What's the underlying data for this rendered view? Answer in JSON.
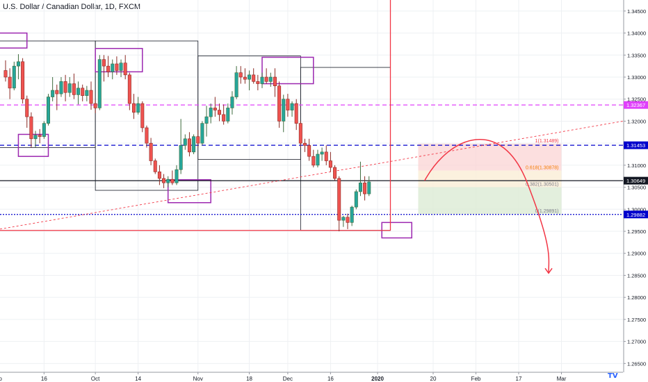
{
  "chart_data": {
    "type": "candlestick",
    "title": "U.S. Dollar / Canadian Dollar, 1D, FXCM",
    "y_ticks": [
      "1.34500",
      "1.34000",
      "1.33500",
      "1.33000",
      "1.32500",
      "1.32000",
      "1.31500",
      "1.31000",
      "1.30500",
      "1.30000",
      "1.29500",
      "1.29000",
      "1.28500",
      "1.28000",
      "1.27500",
      "1.27000",
      "1.26500"
    ],
    "ylim": [
      1.263,
      1.3475
    ],
    "x_ticks": [
      {
        "label": "Sep",
        "i": -2
      },
      {
        "label": "16",
        "i": 9
      },
      {
        "label": "Oct",
        "i": 21
      },
      {
        "label": "14",
        "i": 31
      },
      {
        "label": "Nov",
        "i": 45
      },
      {
        "label": "18",
        "i": 57
      },
      {
        "label": "Dec",
        "i": 66
      },
      {
        "label": "16",
        "i": 76
      },
      {
        "label": "2020",
        "i": 87
      },
      {
        "label": "20",
        "i": 100
      },
      {
        "label": "Feb",
        "i": 110
      },
      {
        "label": "17",
        "i": 120
      },
      {
        "label": "Mar",
        "i": 130
      }
    ],
    "candles": [
      [
        1.3315,
        1.3338,
        1.329,
        1.33
      ],
      [
        1.33,
        1.332,
        1.325,
        1.3275
      ],
      [
        1.3275,
        1.3335,
        1.327,
        1.3325
      ],
      [
        1.3325,
        1.3352,
        1.3295,
        1.3335
      ],
      [
        1.3335,
        1.3343,
        1.324,
        1.325
      ],
      [
        1.325,
        1.3258,
        1.3185,
        1.321
      ],
      [
        1.321,
        1.322,
        1.314,
        1.316
      ],
      [
        1.316,
        1.3178,
        1.314,
        1.3168
      ],
      [
        1.3168,
        1.3182,
        1.315,
        1.3165
      ],
      [
        1.3165,
        1.32,
        1.316,
        1.3195
      ],
      [
        1.3195,
        1.3262,
        1.319,
        1.3255
      ],
      [
        1.3255,
        1.33,
        1.3245,
        1.327
      ],
      [
        1.327,
        1.3283,
        1.3225,
        1.3262
      ],
      [
        1.3262,
        1.33,
        1.3255,
        1.329
      ],
      [
        1.329,
        1.3305,
        1.3245,
        1.3265
      ],
      [
        1.3265,
        1.33,
        1.3255,
        1.3285
      ],
      [
        1.3285,
        1.3308,
        1.325,
        1.326
      ],
      [
        1.326,
        1.329,
        1.3238,
        1.3275
      ],
      [
        1.3275,
        1.3283,
        1.3245,
        1.3258
      ],
      [
        1.3258,
        1.328,
        1.3245,
        1.327
      ],
      [
        1.327,
        1.329,
        1.3226,
        1.324
      ],
      [
        1.324,
        1.3248,
        1.3218,
        1.323
      ],
      [
        1.323,
        1.335,
        1.3225,
        1.334
      ],
      [
        1.334,
        1.335,
        1.329,
        1.3325
      ],
      [
        1.3325,
        1.3348,
        1.33,
        1.3312
      ],
      [
        1.3312,
        1.334,
        1.3295,
        1.333
      ],
      [
        1.333,
        1.3347,
        1.3305,
        1.3315
      ],
      [
        1.3315,
        1.334,
        1.33,
        1.3332
      ],
      [
        1.3332,
        1.335,
        1.3295,
        1.3305
      ],
      [
        1.3305,
        1.331,
        1.3225,
        1.324
      ],
      [
        1.324,
        1.3262,
        1.3205,
        1.322
      ],
      [
        1.322,
        1.3255,
        1.3215,
        1.324
      ],
      [
        1.324,
        1.3245,
        1.3175,
        1.3185
      ],
      [
        1.3185,
        1.319,
        1.314,
        1.315
      ],
      [
        1.315,
        1.3162,
        1.31,
        1.311
      ],
      [
        1.311,
        1.3115,
        1.308,
        1.3085
      ],
      [
        1.3085,
        1.31,
        1.3055,
        1.307
      ],
      [
        1.307,
        1.308,
        1.3048,
        1.306
      ],
      [
        1.306,
        1.3075,
        1.305,
        1.3068
      ],
      [
        1.3068,
        1.3088,
        1.3055,
        1.306
      ],
      [
        1.306,
        1.31,
        1.3055,
        1.309
      ],
      [
        1.309,
        1.3205,
        1.308,
        1.3145
      ],
      [
        1.3145,
        1.317,
        1.3135,
        1.316
      ],
      [
        1.316,
        1.3175,
        1.312,
        1.313
      ],
      [
        1.313,
        1.317,
        1.3125,
        1.3165
      ],
      [
        1.3165,
        1.318,
        1.314,
        1.315
      ],
      [
        1.315,
        1.32,
        1.3145,
        1.3195
      ],
      [
        1.3195,
        1.3235,
        1.3165,
        1.321
      ],
      [
        1.321,
        1.324,
        1.3195,
        1.323
      ],
      [
        1.323,
        1.3255,
        1.321,
        1.3225
      ],
      [
        1.3225,
        1.324,
        1.32,
        1.3215
      ],
      [
        1.3215,
        1.3238,
        1.3192,
        1.32
      ],
      [
        1.32,
        1.324,
        1.3195,
        1.323
      ],
      [
        1.323,
        1.3268,
        1.3215,
        1.3255
      ],
      [
        1.3255,
        1.3325,
        1.325,
        1.331
      ],
      [
        1.331,
        1.3325,
        1.3285,
        1.33
      ],
      [
        1.33,
        1.332,
        1.3285,
        1.3295
      ],
      [
        1.3295,
        1.3315,
        1.327,
        1.3305
      ],
      [
        1.3305,
        1.332,
        1.3285,
        1.329
      ],
      [
        1.329,
        1.3305,
        1.327,
        1.3285
      ],
      [
        1.3285,
        1.331,
        1.3275,
        1.33
      ],
      [
        1.33,
        1.332,
        1.3285,
        1.329
      ],
      [
        1.329,
        1.331,
        1.3278,
        1.33
      ],
      [
        1.33,
        1.332,
        1.3255,
        1.328
      ],
      [
        1.328,
        1.329,
        1.3185,
        1.32
      ],
      [
        1.32,
        1.326,
        1.3175,
        1.325
      ],
      [
        1.325,
        1.3262,
        1.321,
        1.3225
      ],
      [
        1.3225,
        1.3245,
        1.321,
        1.324
      ],
      [
        1.324,
        1.325,
        1.318,
        1.3195
      ],
      [
        1.3195,
        1.32,
        1.314,
        1.315
      ],
      [
        1.315,
        1.316,
        1.313,
        1.3145
      ],
      [
        1.3145,
        1.316,
        1.311,
        1.312
      ],
      [
        1.312,
        1.3135,
        1.3095,
        1.31
      ],
      [
        1.31,
        1.3135,
        1.3095,
        1.3125
      ],
      [
        1.3125,
        1.314,
        1.311,
        1.313
      ],
      [
        1.313,
        1.3145,
        1.31,
        1.311
      ],
      [
        1.311,
        1.313,
        1.3085,
        1.3095
      ],
      [
        1.3095,
        1.31,
        1.3065,
        1.307
      ],
      [
        1.307,
        1.3075,
        1.295,
        1.2975
      ],
      [
        1.2975,
        1.2985,
        1.296,
        1.2982
      ],
      [
        1.2982,
        1.299,
        1.2955,
        1.297
      ],
      [
        1.297,
        1.3008,
        1.2962,
        1.3005
      ],
      [
        1.3005,
        1.3045,
        1.3,
        1.304
      ],
      [
        1.304,
        1.3108,
        1.303,
        1.306
      ],
      [
        1.306,
        1.3075,
        1.302,
        1.3035
      ],
      [
        1.3035,
        1.3075,
        1.303,
        1.3062
      ]
    ],
    "horizontal_lines": [
      {
        "value": 1.32367,
        "label": "1.32367",
        "color": "#e040fb",
        "style": "dashed"
      },
      {
        "value": 1.31453,
        "label": "1.31453",
        "color": "#0000cc",
        "style": "dashed"
      },
      {
        "value": 1.30649,
        "label": "1.30649",
        "color": "#131722",
        "style": "solid"
      },
      {
        "value": 1.29882,
        "label": "1.29882",
        "color": "#0000cc",
        "style": "dotted"
      }
    ],
    "fib_levels": [
      {
        "label": "1(1.31489)",
        "value": 1.31489,
        "color": "#f23645"
      },
      {
        "label": "0.618(1.30878)",
        "value": 1.30878,
        "color": "#f57c00"
      },
      {
        "label": "0.382(1.30501)",
        "value": 1.30501,
        "color": "#787b86"
      },
      {
        "label": "0(1.29891)",
        "value": 1.29891,
        "color": "#787b86"
      }
    ],
    "colors": {
      "up": "#26a69a",
      "down": "#ef5350",
      "up_border": "#3d6b3d",
      "down_border": "#8b2a24",
      "box_purple": "#9c27b0",
      "forecast": "#f23645",
      "tp_zone": "#fbd4d4",
      "sl_zone": "#dcebd4",
      "mid_zone": "#faeed8"
    }
  }
}
